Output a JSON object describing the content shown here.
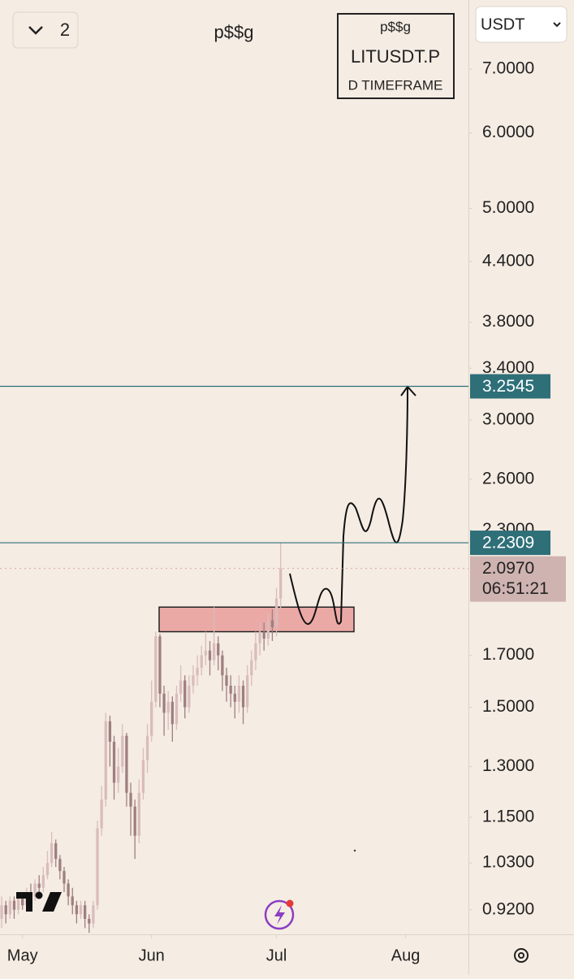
{
  "chart_data": {
    "type": "candlestick",
    "title": "p$$g",
    "chart_count": 2,
    "currency": "USDT",
    "info_box": {
      "watermark": "p$$g",
      "symbol": "LITUSDT.P",
      "timeframe": "D TIMEFRAME"
    },
    "log_scale": true,
    "ylim": [
      0.867,
      8.27
    ],
    "xlim": [
      -0.4,
      112.1
    ],
    "yticks": [
      {
        "value": 7,
        "label": "7.0000"
      },
      {
        "value": 6,
        "label": "6.0000"
      },
      {
        "value": 5,
        "label": "5.0000"
      },
      {
        "value": 4.4,
        "label": "4.4000"
      },
      {
        "value": 3.8,
        "label": "3.8000"
      },
      {
        "value": 3.4,
        "label": "3.4000"
      },
      {
        "value": 3,
        "label": "3.0000"
      },
      {
        "value": 2.6,
        "label": "2.6000"
      },
      {
        "value": 2.3,
        "label": "2.3000"
      },
      {
        "value": 1.7,
        "label": "1.7000"
      },
      {
        "value": 1.5,
        "label": "1.5000"
      },
      {
        "value": 1.3,
        "label": "1.3000"
      },
      {
        "value": 1.15,
        "label": "1.1500"
      },
      {
        "value": 1.03,
        "label": "1.0300"
      },
      {
        "value": 0.92,
        "label": "0.9200"
      }
    ],
    "xticks": [
      {
        "value": 5,
        "label": "May"
      },
      {
        "value": 36,
        "label": "Jun"
      },
      {
        "value": 66,
        "label": "Jul"
      },
      {
        "value": 97,
        "label": "Aug"
      }
    ],
    "up_color": "#d9bcbc",
    "down_color": "#9e7f80",
    "open": [
      0.9,
      0.93,
      0.91,
      0.94,
      0.92,
      0.95,
      0.93,
      0.96,
      0.95,
      0.98,
      0.97,
      1.0,
      1.03,
      1.08,
      1.04,
      1.01,
      0.98,
      0.95,
      0.93,
      0.91,
      0.93,
      0.9,
      0.89,
      0.93,
      1.12,
      1.2,
      1.45,
      1.38,
      1.25,
      1.3,
      1.4,
      1.22,
      1.18,
      1.1,
      1.22,
      1.32,
      1.4,
      1.52,
      1.78,
      1.55,
      1.48,
      1.52,
      1.44,
      1.55,
      1.6,
      1.5,
      1.58,
      1.62,
      1.65,
      1.7,
      1.72,
      1.68,
      1.75,
      1.7,
      1.62,
      1.58,
      1.55,
      1.52,
      1.58,
      1.5,
      1.62,
      1.68,
      1.75,
      1.8,
      1.77,
      1.85,
      1.82,
      1.95
    ],
    "high": [
      0.95,
      0.94,
      0.95,
      0.95,
      0.96,
      0.96,
      0.97,
      0.98,
      0.99,
      1.0,
      1.02,
      1.06,
      1.11,
      1.09,
      1.05,
      1.02,
      0.99,
      0.97,
      0.94,
      0.94,
      0.94,
      0.91,
      0.94,
      1.14,
      1.24,
      1.48,
      1.47,
      1.4,
      1.36,
      1.44,
      1.41,
      1.25,
      1.2,
      1.26,
      1.36,
      1.44,
      1.6,
      1.8,
      1.79,
      1.58,
      1.56,
      1.54,
      1.58,
      1.66,
      1.62,
      1.62,
      1.66,
      1.7,
      1.74,
      1.8,
      1.76,
      1.91,
      1.78,
      1.72,
      1.65,
      1.62,
      1.58,
      1.62,
      1.6,
      1.66,
      1.72,
      1.8,
      1.84,
      1.84,
      1.88,
      1.9,
      2.0,
      2.23
    ],
    "low": [
      0.88,
      0.89,
      0.9,
      0.9,
      0.91,
      0.92,
      0.92,
      0.94,
      0.94,
      0.96,
      0.96,
      0.99,
      1.02,
      1.02,
      0.99,
      0.96,
      0.93,
      0.91,
      0.89,
      0.9,
      0.88,
      0.87,
      0.88,
      0.92,
      1.1,
      1.18,
      1.3,
      1.2,
      1.22,
      1.28,
      1.18,
      1.1,
      1.04,
      1.08,
      1.2,
      1.28,
      1.38,
      1.5,
      1.5,
      1.4,
      1.42,
      1.38,
      1.42,
      1.52,
      1.46,
      1.48,
      1.55,
      1.58,
      1.62,
      1.66,
      1.62,
      1.66,
      1.64,
      1.56,
      1.52,
      1.5,
      1.46,
      1.48,
      1.44,
      1.48,
      1.58,
      1.64,
      1.7,
      1.72,
      1.74,
      1.76,
      1.78,
      1.9
    ],
    "close": [
      0.93,
      0.91,
      0.94,
      0.92,
      0.95,
      0.93,
      0.96,
      0.95,
      0.98,
      0.97,
      1.0,
      1.03,
      1.08,
      1.04,
      1.01,
      0.98,
      0.95,
      0.93,
      0.91,
      0.93,
      0.9,
      0.89,
      0.93,
      1.12,
      1.2,
      1.45,
      1.38,
      1.25,
      1.3,
      1.4,
      1.22,
      1.18,
      1.1,
      1.22,
      1.32,
      1.4,
      1.52,
      1.78,
      1.55,
      1.48,
      1.52,
      1.44,
      1.55,
      1.6,
      1.5,
      1.58,
      1.62,
      1.65,
      1.7,
      1.72,
      1.68,
      1.75,
      1.7,
      1.62,
      1.58,
      1.55,
      1.52,
      1.58,
      1.5,
      1.62,
      1.68,
      1.75,
      1.8,
      1.77,
      1.85,
      1.82,
      1.95,
      2.097
    ],
    "price_lines": [
      {
        "value": 3.2545,
        "color": "#2e6f78"
      },
      {
        "value": 2.2309,
        "color": "#2e6f78"
      }
    ],
    "last_price": {
      "value": 2.097,
      "label": "2.0970",
      "countdown": "06:51:21",
      "color": "#cfb3b0"
    },
    "zone": {
      "low": 1.8,
      "high": 1.91,
      "color": "#eba9a6"
    }
  }
}
